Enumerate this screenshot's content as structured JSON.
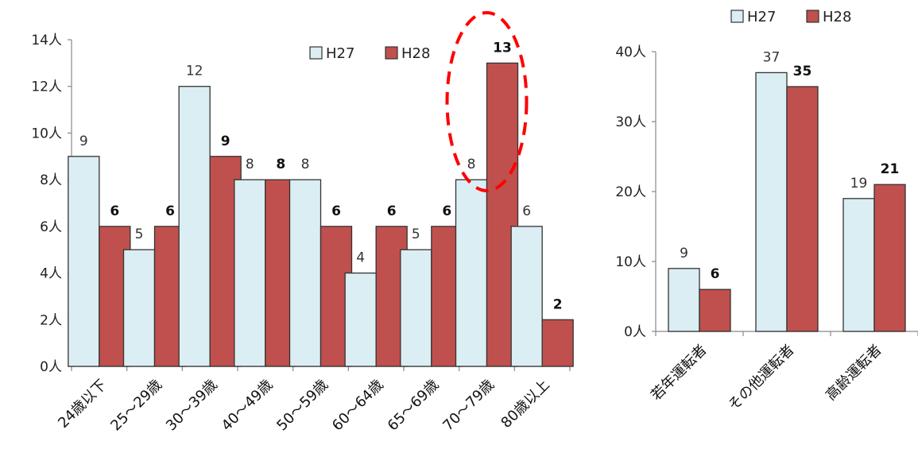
{
  "chart_data": [
    {
      "type": "bar",
      "categories": [
        "24歳以下",
        "25～29歳",
        "30～39歳",
        "40～49歳",
        "50～59歳",
        "60～64歳",
        "65～69歳",
        "70～79歳",
        "80歳以上"
      ],
      "series": [
        {
          "name": "H27",
          "values": [
            9,
            5,
            12,
            8,
            8,
            4,
            5,
            8,
            6
          ],
          "color": "#daeef3"
        },
        {
          "name": "H28",
          "values": [
            6,
            6,
            9,
            8,
            6,
            6,
            6,
            13,
            2
          ],
          "color": "#c0504d"
        }
      ],
      "ylim": [
        0,
        14
      ],
      "yticks": [
        "0人",
        "2人",
        "4人",
        "6人",
        "8人",
        "10人",
        "12人",
        "14人"
      ],
      "legend_position": "top-right",
      "grid": false,
      "highlight": {
        "category": "70～79歳",
        "shape": "dashed-ellipse",
        "color": "#ff0000"
      }
    },
    {
      "type": "bar",
      "categories": [
        "若年運転者",
        "その他運転者",
        "高齢運転者"
      ],
      "series": [
        {
          "name": "H27",
          "values": [
            9,
            37,
            19
          ],
          "color": "#daeef3"
        },
        {
          "name": "H28",
          "values": [
            6,
            35,
            21
          ],
          "color": "#c0504d"
        }
      ],
      "ylim": [
        0,
        40
      ],
      "yticks": [
        "0人",
        "10人",
        "20人",
        "30人",
        "40人"
      ],
      "legend_position": "top",
      "grid": false
    }
  ]
}
